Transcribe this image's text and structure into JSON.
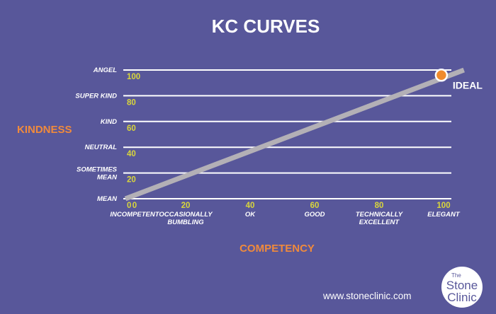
{
  "chart_data": {
    "type": "line",
    "title": "KC CURVES",
    "xlabel": "COMPETENCY",
    "ylabel": "KINDNESS",
    "xlim": [
      0,
      100
    ],
    "ylim": [
      0,
      100
    ],
    "x_ticks": [
      {
        "value": 0,
        "label": "0",
        "caption": [
          "INCOMPETENT"
        ]
      },
      {
        "value": 20,
        "label": "20",
        "caption": [
          "OCCASIONALLY",
          "BUMBLING"
        ]
      },
      {
        "value": 40,
        "label": "40",
        "caption": [
          "OK"
        ]
      },
      {
        "value": 60,
        "label": "60",
        "caption": [
          "GOOD"
        ]
      },
      {
        "value": 80,
        "label": "80",
        "caption": [
          "TECHNICALLY",
          "EXCELLENT"
        ]
      },
      {
        "value": 100,
        "label": "100",
        "caption": [
          "ELEGANT"
        ]
      }
    ],
    "y_ticks": [
      {
        "value": 0,
        "label": "0",
        "caption": [
          "MEAN"
        ]
      },
      {
        "value": 20,
        "label": "20",
        "caption": [
          "SOMETIMES",
          "MEAN"
        ]
      },
      {
        "value": 40,
        "label": "40",
        "caption": [
          "NEUTRAL"
        ]
      },
      {
        "value": 60,
        "label": "60",
        "caption": [
          "KIND"
        ]
      },
      {
        "value": 80,
        "label": "80",
        "caption": [
          "SUPER KIND"
        ]
      },
      {
        "value": 100,
        "label": "100",
        "caption": [
          "ANGEL"
        ]
      }
    ],
    "series": [
      {
        "x": [
          0,
          105
        ],
        "y": [
          0,
          100
        ],
        "color": "#b3b0b6"
      }
    ],
    "annotations": [
      {
        "text": "IDEAL",
        "x": 98,
        "y": 96,
        "marker_color": "#f08a2c"
      }
    ],
    "grid": true
  },
  "footer": {
    "url": "www.stoneclinic.com",
    "logo": {
      "line1": "The",
      "line2": "Stone",
      "line3": "Clinic"
    }
  },
  "colors": {
    "background": "#58579a",
    "gridline": "#ffffff",
    "tick_number": "#d9d63b",
    "axis_title": "#f08a3c",
    "marker": "#f08a2c",
    "line": "#b3b0b6"
  }
}
